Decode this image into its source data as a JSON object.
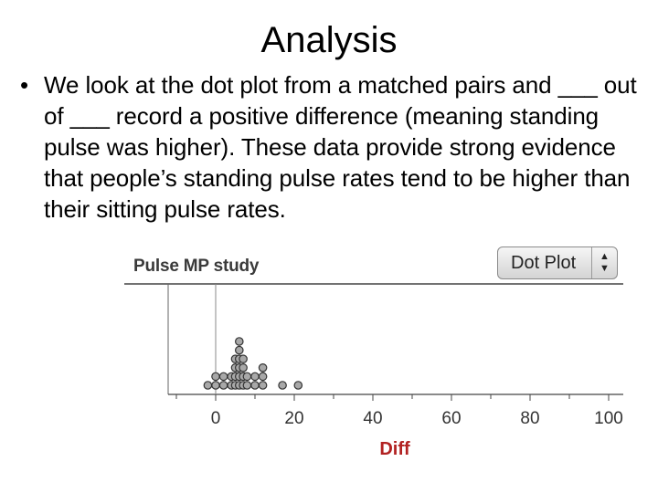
{
  "slide": {
    "title": "Analysis",
    "bullet_marker": "•",
    "bullet_text": "We look at the dot plot from a matched pairs and ___ out of ___ record a positive difference (meaning standing pulse was higher). These data provide strong evidence that people’s standing pulse rates tend to be higher than their sitting pulse rates."
  },
  "plot_header": {
    "dataset_name": "Pulse MP study",
    "plot_type_selected": "Dot Plot",
    "selector_icon": "up-down-chevron-icon"
  },
  "colors": {
    "axis_label": "#b22222",
    "dot_fill": "#a8a8a8",
    "dot_stroke": "#333333",
    "axis": "#444444"
  },
  "chart_data": {
    "type": "scatter",
    "subtype": "dot-plot",
    "title": "Pulse MP study",
    "xlabel": "Diff",
    "ylabel": "",
    "xlim": [
      -10,
      100
    ],
    "xticks": [
      0,
      20,
      40,
      60,
      80,
      100
    ],
    "minor_tick_step": 10,
    "reference_line_x": 0,
    "dot_stacks": [
      {
        "x": -2,
        "count": 1
      },
      {
        "x": 0,
        "count": 2
      },
      {
        "x": 2,
        "count": 2
      },
      {
        "x": 4,
        "count": 2
      },
      {
        "x": 5,
        "count": 4
      },
      {
        "x": 6,
        "count": 6
      },
      {
        "x": 7,
        "count": 4
      },
      {
        "x": 8,
        "count": 2
      },
      {
        "x": 10,
        "count": 2
      },
      {
        "x": 12,
        "count": 3
      },
      {
        "x": 17,
        "count": 1
      },
      {
        "x": 21,
        "count": 1
      }
    ]
  }
}
